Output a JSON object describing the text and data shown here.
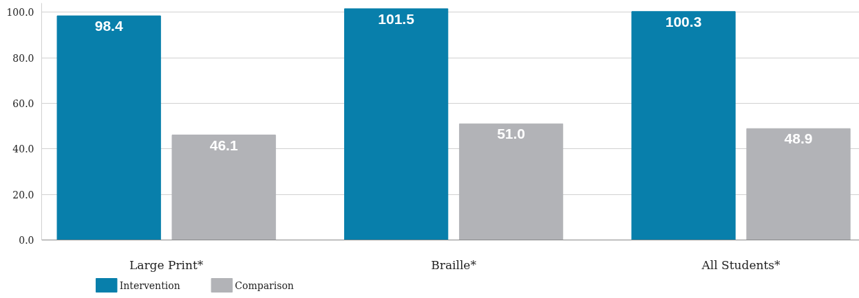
{
  "chart_data": {
    "type": "bar",
    "categories": [
      "Large Print*",
      "Braille*",
      "All Students*"
    ],
    "series": [
      {
        "name": "Intervention",
        "color": "#087fab",
        "values": [
          98.4,
          101.5,
          100.3
        ],
        "value_labels": [
          "98.4",
          "101.5",
          "100.3"
        ]
      },
      {
        "name": "Comparison",
        "color": "#b2b3b7",
        "values": [
          46.1,
          51.0,
          48.9
        ],
        "value_labels": [
          "46.1",
          "51.0",
          "48.9"
        ]
      }
    ],
    "ylim": [
      0,
      104
    ],
    "yticks": [
      {
        "value": 0,
        "label": "0.0"
      },
      {
        "value": 20,
        "label": "20.0"
      },
      {
        "value": 40,
        "label": "40.0"
      },
      {
        "value": 60,
        "label": "60.0"
      },
      {
        "value": 80,
        "label": "80.0"
      },
      {
        "value": 100,
        "label": "100.0"
      }
    ],
    "grid": "y",
    "legend": "bottom left"
  }
}
